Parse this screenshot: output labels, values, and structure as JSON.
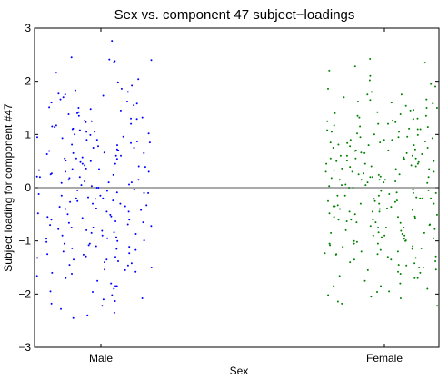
{
  "chart_data": {
    "type": "scatter",
    "title": "Sex vs. component 47 subject−loadings",
    "xlabel": "Sex",
    "ylabel": "Subject loading for component #47",
    "categories": [
      "Male",
      "Female"
    ],
    "ylim": [
      -3,
      3
    ],
    "yticks": [
      "3",
      "2",
      "1",
      "0",
      "−1",
      "−2",
      "−3"
    ],
    "ytick_values": [
      3,
      2,
      1,
      0,
      -1,
      -2,
      -3
    ],
    "reference_line": 0,
    "grid": false,
    "series": [
      {
        "category": "Male",
        "color": "#0000ff",
        "values": [
          2.76,
          2.45,
          2.41,
          2.4,
          2.38,
          2.36,
          2.16,
          2.04,
          1.98,
          1.92,
          1.86,
          1.83,
          1.8,
          1.77,
          1.73,
          1.7,
          1.66,
          1.62,
          1.58,
          1.55,
          1.51,
          1.48,
          1.45,
          1.42,
          1.38,
          1.35,
          1.32,
          1.29,
          1.26,
          1.23,
          1.2,
          1.17,
          1.14,
          1.11,
          1.08,
          1.05,
          1.02,
          0.99,
          0.96,
          0.93,
          0.9,
          0.87,
          0.84,
          0.81,
          0.78,
          0.75,
          0.72,
          0.69,
          0.66,
          0.63,
          0.6,
          0.57,
          0.54,
          0.51,
          0.48,
          0.45,
          0.42,
          0.39,
          0.36,
          0.33,
          0.3,
          0.27,
          0.24,
          0.21,
          0.18,
          0.15,
          0.12,
          0.09,
          0.06,
          0.03,
          0.0,
          -0.03,
          -0.06,
          -0.09,
          -0.12,
          -0.15,
          -0.18,
          -0.21,
          -0.24,
          -0.27,
          -0.3,
          -0.33,
          -0.36,
          -0.39,
          -0.42,
          -0.45,
          -0.48,
          -0.51,
          -0.54,
          -0.57,
          -0.6,
          -0.63,
          -0.66,
          -0.69,
          -0.72,
          -0.75,
          -0.78,
          -0.81,
          -0.84,
          -0.87,
          -0.9,
          -0.93,
          -0.96,
          -0.99,
          -1.02,
          -1.05,
          -1.08,
          -1.11,
          -1.14,
          -1.17,
          -1.2,
          -1.23,
          -1.26,
          -1.29,
          -1.32,
          -1.35,
          -1.38,
          -1.42,
          -1.46,
          -1.5,
          -1.54,
          -1.58,
          -1.62,
          -1.66,
          -1.7,
          -1.75,
          -1.8,
          -1.85,
          -1.9,
          -1.96,
          -2.02,
          -2.08,
          -2.13,
          -2.18,
          -2.22,
          -2.28,
          -2.35,
          -2.4,
          -2.45,
          -1.3,
          -0.25,
          0.2,
          0.55,
          1.0,
          -0.7,
          0.35,
          -0.1,
          0.8,
          -1.1,
          0.1,
          -0.45,
          0.65,
          -0.85,
          1.25,
          -1.6,
          0.4,
          -0.2,
          0.95,
          -1.35,
          0.05,
          -0.55,
          1.6,
          -1.95,
          0.25,
          -0.35,
          0.7,
          -1.0,
          1.4,
          -0.15,
          0.5,
          -0.65,
          1.1,
          -1.25,
          0.15,
          -0.05,
          0.85,
          -0.9,
          1.75,
          -2.1,
          0.3,
          -0.4,
          0.6,
          -0.75,
          1.3,
          -1.45,
          0.0,
          -0.3,
          0.9,
          -1.15,
          0.45,
          -0.5,
          1.15,
          -1.55,
          0.2,
          -0.6,
          0.75,
          -1.05,
          1.5,
          -1.85,
          0.1,
          -0.2,
          0.55,
          -0.8,
          1.05,
          -1.4,
          0.35,
          -0.1,
          0.65,
          -0.95
        ]
      },
      {
        "category": "Female",
        "color": "#008000",
        "values": [
          2.42,
          2.35,
          2.28,
          2.2,
          2.1,
          2.02,
          1.95,
          1.9,
          1.86,
          1.8,
          1.75,
          1.7,
          1.66,
          1.62,
          1.58,
          1.54,
          1.5,
          1.46,
          1.42,
          1.38,
          1.35,
          1.32,
          1.29,
          1.26,
          1.23,
          1.2,
          1.17,
          1.14,
          1.11,
          1.08,
          1.05,
          1.02,
          0.99,
          0.96,
          0.93,
          0.9,
          0.87,
          0.84,
          0.81,
          0.78,
          0.75,
          0.72,
          0.69,
          0.66,
          0.63,
          0.6,
          0.57,
          0.54,
          0.51,
          0.48,
          0.45,
          0.42,
          0.39,
          0.36,
          0.33,
          0.3,
          0.27,
          0.24,
          0.21,
          0.18,
          0.15,
          0.12,
          0.09,
          0.06,
          0.03,
          0.0,
          -0.03,
          -0.06,
          -0.09,
          -0.12,
          -0.15,
          -0.18,
          -0.21,
          -0.24,
          -0.27,
          -0.3,
          -0.33,
          -0.36,
          -0.39,
          -0.42,
          -0.45,
          -0.48,
          -0.51,
          -0.54,
          -0.57,
          -0.6,
          -0.63,
          -0.66,
          -0.69,
          -0.72,
          -0.75,
          -0.78,
          -0.81,
          -0.84,
          -0.87,
          -0.9,
          -0.93,
          -0.96,
          -0.99,
          -1.02,
          -1.05,
          -1.08,
          -1.11,
          -1.14,
          -1.17,
          -1.2,
          -1.23,
          -1.26,
          -1.29,
          -1.32,
          -1.35,
          -1.38,
          -1.42,
          -1.46,
          -1.5,
          -1.54,
          -1.58,
          -1.62,
          -1.66,
          -1.7,
          -1.75,
          -1.8,
          -1.85,
          -1.9,
          -1.96,
          -2.02,
          -2.08,
          -2.14,
          -2.18,
          -2.22,
          0.2,
          -0.25,
          0.55,
          -0.7,
          1.0,
          0.35,
          -0.1,
          0.8,
          -1.1,
          0.1,
          -0.45,
          0.65,
          -0.85,
          1.25,
          -1.6,
          0.4,
          -0.2,
          0.95,
          -1.35,
          0.05,
          -0.55,
          1.6,
          -1.95,
          0.25,
          -0.35,
          0.7,
          -1.0,
          1.4,
          -0.15,
          0.5,
          -0.65,
          1.1,
          -1.25,
          0.15,
          -0.05,
          0.85,
          -0.9,
          1.75,
          -2.05,
          0.3,
          -0.4,
          0.6,
          -0.75,
          1.3,
          -1.45,
          0.0,
          -0.3,
          0.9,
          -1.15,
          0.45,
          -0.5,
          1.15,
          -1.55,
          0.2,
          -0.6,
          0.75,
          -1.05,
          1.5,
          -1.85,
          0.1,
          -0.2,
          0.55,
          -0.8,
          1.05,
          -1.4,
          0.35,
          -0.1,
          0.65,
          -0.95,
          0.25,
          -0.35,
          0.45,
          -0.55,
          0.85,
          -0.65,
          1.2,
          -1.2,
          0.15,
          -0.25,
          0.7,
          -0.85,
          1.45,
          -1.5,
          0.05,
          -0.15,
          0.6,
          -0.75,
          0.95,
          -1.05,
          0.4,
          -0.45,
          1.65,
          -1.7,
          0.3,
          -0.4,
          0.8,
          -0.9,
          1.1,
          -1.3,
          0.2,
          -0.3,
          0.5,
          -0.6,
          0.9,
          -1.0,
          1.35,
          -1.25,
          0.15,
          -0.2,
          0.55
        ]
      }
    ]
  }
}
